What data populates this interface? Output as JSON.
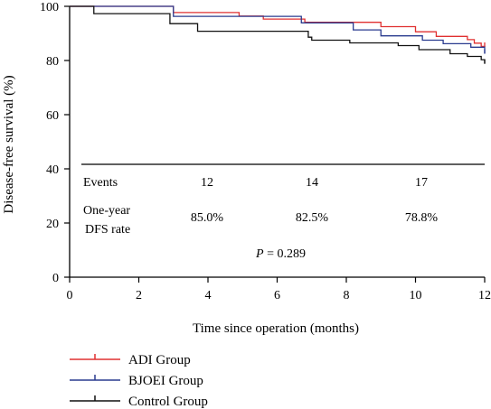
{
  "chart_data": {
    "type": "line",
    "xlabel": "Time since operation (months)",
    "ylabel": "Disease-free survival (%)",
    "xlim": [
      0,
      12
    ],
    "ylim": [
      0,
      100
    ],
    "x_ticks": [
      "0",
      "2",
      "4",
      "6",
      "8",
      "10",
      "12"
    ],
    "y_ticks": [
      "0",
      "20",
      "40",
      "60",
      "80",
      "100"
    ],
    "grid": false,
    "legend_placement": "bottom-left",
    "colors": {
      "ADI Group": "#e03030",
      "BJOEI Group": "#2a3b8f",
      "Control Group": "#111111"
    },
    "series": [
      {
        "name": "ADI Group",
        "x": [
          0,
          3.0,
          4.9,
          5.6,
          6.8,
          9.0,
          10.0,
          10.6,
          11.5,
          11.7,
          11.9,
          12.0
        ],
        "y": [
          100,
          97.7,
          96.4,
          95.3,
          94.1,
          92.5,
          90.6,
          88.9,
          87.7,
          86.4,
          85.2,
          85.0
        ]
      },
      {
        "name": "BJOEI Group",
        "x": [
          0,
          3.0,
          6.7,
          8.2,
          9.0,
          10.2,
          10.8,
          11.6,
          12.0
        ],
        "y": [
          100,
          96.3,
          93.9,
          91.3,
          89.1,
          87.5,
          86.2,
          84.9,
          82.5
        ]
      },
      {
        "name": "Control Group",
        "x": [
          0,
          0.7,
          2.9,
          3.7,
          6.9,
          7.0,
          8.1,
          9.5,
          10.1,
          11.0,
          11.5,
          11.9,
          12.0
        ],
        "y": [
          100,
          97.3,
          93.6,
          90.8,
          88.6,
          87.5,
          86.5,
          85.5,
          84.0,
          82.5,
          81.5,
          80.3,
          78.8
        ]
      }
    ],
    "inset": {
      "events_label": "Events",
      "events": [
        "12",
        "14",
        "17"
      ],
      "rate_label_line1": "One-year",
      "rate_label_line2": "DFS rate",
      "rates": [
        "85.0%",
        "82.5%",
        "78.8%"
      ],
      "p_symbol": "P",
      "p_value_text": " = 0.289"
    },
    "legend": [
      "ADI Group",
      "BJOEI Group",
      "Control Group"
    ]
  }
}
